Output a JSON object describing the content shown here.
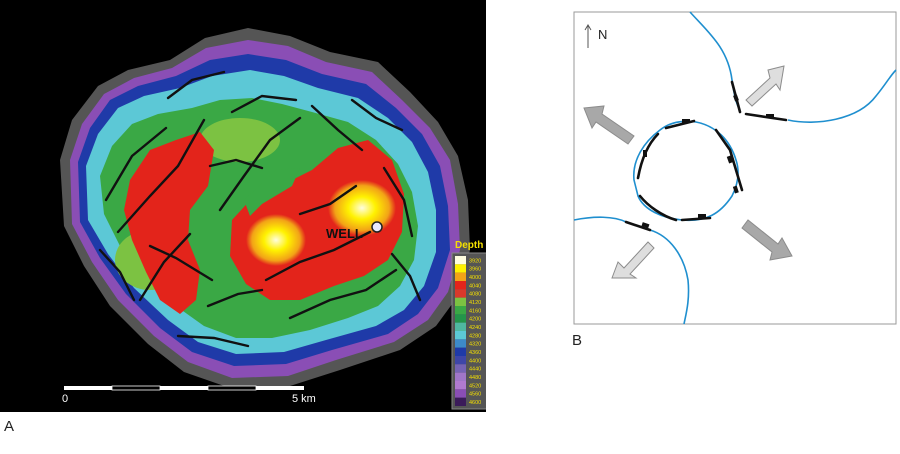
{
  "panel_a": {
    "letter": "A",
    "well_label": "WELL",
    "legend_title": "Depth (m)",
    "legend_entries": [
      {
        "label": "3920",
        "color": "#fffde0"
      },
      {
        "label": "3960",
        "color": "#fff200"
      },
      {
        "label": "4000",
        "color": "#f2a317"
      },
      {
        "label": "4040",
        "color": "#e3241b"
      },
      {
        "label": "4080",
        "color": "#d8392b"
      },
      {
        "label": "4120",
        "color": "#7cc242"
      },
      {
        "label": "4160",
        "color": "#3aa845"
      },
      {
        "label": "4200",
        "color": "#23954a"
      },
      {
        "label": "4240",
        "color": "#4fb7a1"
      },
      {
        "label": "4280",
        "color": "#5cc8d6"
      },
      {
        "label": "4320",
        "color": "#3d8ac9"
      },
      {
        "label": "4360",
        "color": "#1f3aa8"
      },
      {
        "label": "4400",
        "color": "#3e46a8"
      },
      {
        "label": "4440",
        "color": "#7563b5"
      },
      {
        "label": "4480",
        "color": "#a076c8"
      },
      {
        "label": "4520",
        "color": "#b07ad0"
      },
      {
        "label": "4560",
        "color": "#8a4eb5"
      },
      {
        "label": "4600",
        "color": "#3b1b5a"
      }
    ],
    "scale_start": "0",
    "scale_end": "5 km"
  },
  "panel_b": {
    "letter": "B",
    "north_label": "N"
  },
  "colors": {
    "background_a": "#000000",
    "fault": "#111111",
    "stream": "#1f8fcf",
    "arrow": "#a8a8a8"
  }
}
